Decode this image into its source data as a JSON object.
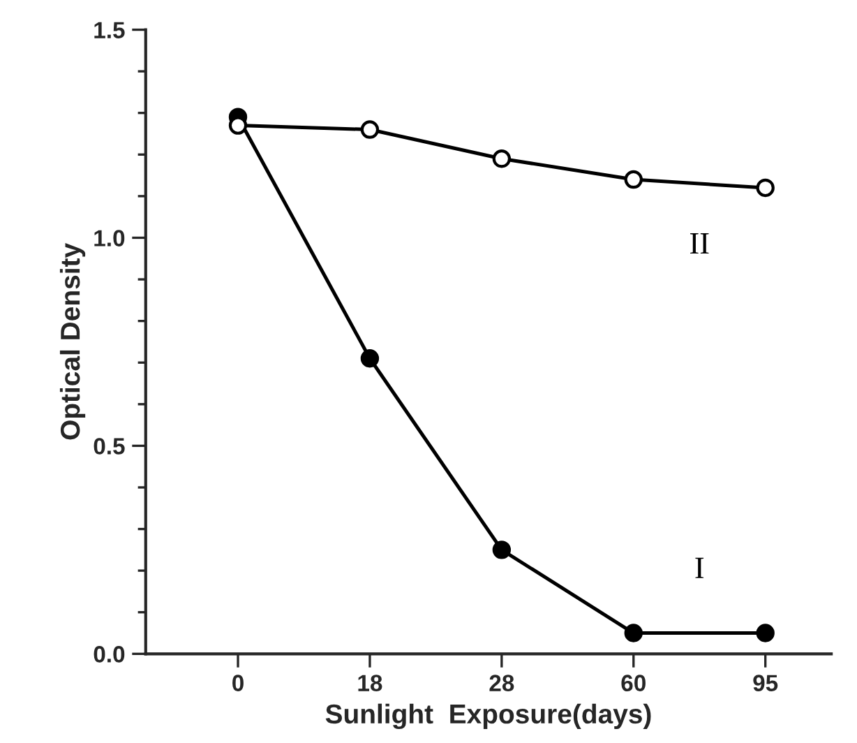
{
  "chart_data": {
    "type": "line",
    "xlabel": "Sunlight  Exposure(days)",
    "ylabel": "Optical Density",
    "categories": [
      "0",
      "18",
      "28",
      "60",
      "95"
    ],
    "series": [
      {
        "name": "I",
        "color": "#000000",
        "marker": "circle",
        "values": [
          1.29,
          0.71,
          0.25,
          0.05,
          0.05
        ]
      },
      {
        "name": "II",
        "color": "#000000",
        "marker": "circle",
        "values": [
          1.27,
          1.26,
          1.19,
          1.14,
          1.12
        ]
      }
    ],
    "ylim": [
      0,
      1.5
    ],
    "yticks": [
      {
        "value": 0,
        "label": "0.0"
      },
      {
        "value": 0.5,
        "label": "0.5"
      },
      {
        "value": 1.0,
        "label": "1.0"
      },
      {
        "value": 1.5,
        "label": "1.5"
      }
    ],
    "grid": false,
    "legend": false,
    "line_style": "solid"
  }
}
